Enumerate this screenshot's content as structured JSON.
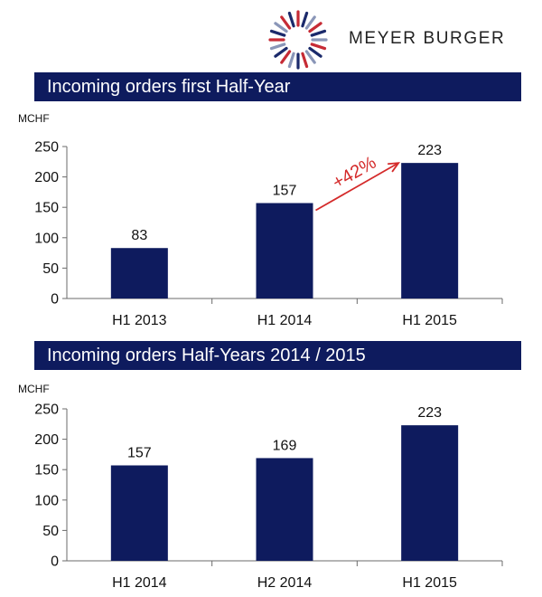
{
  "brand": {
    "name": "MEYER BURGER",
    "logo_colors": [
      "#c62b35",
      "#1b2a6b",
      "#8a96b8"
    ]
  },
  "colors": {
    "banner": "#0e1b5e",
    "bar": "#0e1b5e",
    "annotation": "#d42a2a"
  },
  "chart_data": [
    {
      "type": "bar",
      "title": "Incoming orders first Half-Year",
      "ylabel": "MCHF",
      "categories": [
        "H1 2013",
        "H1 2014",
        "H1 2015"
      ],
      "values": [
        83,
        157,
        223
      ],
      "ylim": [
        0,
        250
      ],
      "yticks": [
        0,
        50,
        100,
        150,
        200,
        250
      ],
      "grid": false,
      "annotation": {
        "text": "+42%",
        "from": "H1 2014",
        "to": "H1 2015"
      }
    },
    {
      "type": "bar",
      "title": "Incoming orders Half-Years 2014 / 2015",
      "ylabel": "MCHF",
      "categories": [
        "H1 2014",
        "H2 2014",
        "H1 2015"
      ],
      "values": [
        157,
        169,
        223
      ],
      "ylim": [
        0,
        250
      ],
      "yticks": [
        0,
        50,
        100,
        150,
        200,
        250
      ],
      "grid": false
    }
  ]
}
